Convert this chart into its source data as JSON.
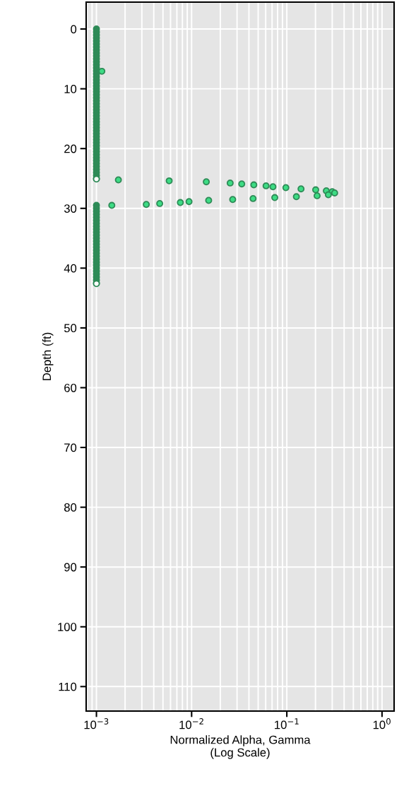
{
  "chart_data": {
    "type": "scatter",
    "xlabel": "Normalized Alpha, Gamma\n(Log Scale)",
    "ylabel": "Depth (ft)",
    "log": "x",
    "grid": true,
    "marker": "circle",
    "xlim": [
      0.00078,
      1.34
    ],
    "ylim": [
      114.1,
      -4.5
    ],
    "xticks": [
      {
        "value": 0.001,
        "label": "10$^{−3}$"
      },
      {
        "value": 0.01,
        "label": "10$^{−2}$"
      },
      {
        "value": 0.1,
        "label": "10$^{−1}$"
      },
      {
        "value": 1,
        "label": "10$^{0}$"
      }
    ],
    "yticks": [
      0,
      10,
      20,
      30,
      40,
      50,
      60,
      70,
      80,
      90,
      100,
      110
    ],
    "series": [
      {
        "color": "#2e8b57",
        "x": [
          0.001,
          0.001,
          0.001,
          0.001,
          0.001,
          0.001,
          0.001,
          0.001,
          0.001,
          0.001,
          0.001,
          0.001,
          0.001,
          0.001,
          0.001,
          0.001,
          0.001,
          0.001,
          0.001,
          0.001,
          0.001,
          0.001,
          0.001,
          0.001,
          0.001,
          0.001,
          0.001,
          0.001,
          0.001,
          0.001,
          0.001,
          0.001,
          0.001,
          0.001,
          0.001,
          0.001,
          0.001,
          0.001,
          0.001,
          0.001,
          0.001,
          0.001,
          0.001,
          0.001,
          0.001,
          0.001,
          0.001,
          0.001,
          0.001,
          0.001,
          0.001,
          0.001,
          0.001,
          0.001,
          0.001,
          0.001,
          0.001,
          0.001,
          0.001,
          0.001,
          0.001,
          0.001,
          0.001,
          0.001,
          0.001,
          0.001,
          0.001,
          0.001,
          0.001,
          0.001,
          0.001,
          0.001,
          0.001,
          0.001,
          0.001,
          0.001,
          0.001,
          0.001
        ],
        "values": [
          0,
          0.5,
          1,
          1.5,
          2,
          2.5,
          3,
          3.5,
          4,
          4.5,
          5,
          5.5,
          6,
          6.5,
          7,
          7.5,
          8,
          8.5,
          9,
          9.5,
          10,
          10.5,
          11,
          11.5,
          12,
          12.5,
          13,
          13.5,
          14,
          14.5,
          15,
          15.5,
          16,
          16.5,
          17,
          17.5,
          18,
          18.5,
          19,
          19.5,
          20,
          20.5,
          21,
          21.5,
          22,
          22.5,
          23,
          23.5,
          24,
          24.5,
          25,
          29.5,
          30,
          30.5,
          31,
          31.5,
          32,
          32.5,
          33,
          33.5,
          34,
          34.5,
          35,
          35.5,
          36,
          36.5,
          37,
          37.5,
          38,
          38.5,
          39,
          39.5,
          40,
          40.5,
          41,
          41.5,
          42,
          42.5
        ]
      },
      {
        "color": "#ffffff",
        "x": [
          0.001,
          0.001
        ],
        "values": [
          25.1,
          42.6
        ]
      },
      {
        "color": "#3ddc84",
        "x": [
          0.00114,
          0.0017,
          0.00581,
          0.01426,
          0.0254,
          0.0336,
          0.045,
          0.0605,
          0.0715,
          0.0977,
          0.141,
          0.201,
          0.26,
          0.3,
          0.318,
          0.273,
          0.208,
          0.126,
          0.0747,
          0.0442,
          0.027,
          0.0151,
          0.00939,
          0.00761,
          0.00462,
          0.00334,
          0.00145
        ],
        "values": [
          7.07,
          25.24,
          25.4,
          25.56,
          25.76,
          25.91,
          26.07,
          26.23,
          26.39,
          26.54,
          26.74,
          26.9,
          27.06,
          27.22,
          27.42,
          27.73,
          27.89,
          28.05,
          28.2,
          28.36,
          28.52,
          28.67,
          28.87,
          29.03,
          29.19,
          29.35,
          29.5
        ]
      }
    ]
  }
}
